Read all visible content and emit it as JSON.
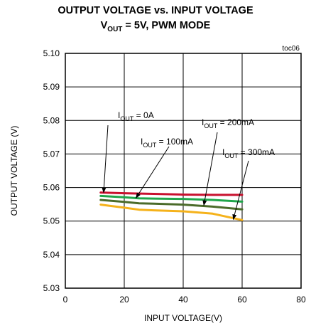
{
  "chart_data": {
    "type": "line",
    "title_line1": "OUTPUT VOLTAGE vs. INPUT VOLTAGE",
    "title_line2": {
      "v": "V",
      "sub": "OUT",
      "rest": " = 5V, PWM MODE"
    },
    "tag": "toc06",
    "xlabel": "INPUT VOLTAGE(V)",
    "ylabel": "OUTPUT VOLTAGE (V)",
    "xlim": [
      0,
      80
    ],
    "ylim": [
      5.03,
      5.1
    ],
    "xticks": [
      "0",
      "20",
      "40",
      "60",
      "80"
    ],
    "yticks": [
      "5.03",
      "5.04",
      "5.05",
      "5.06",
      "5.07",
      "5.08",
      "5.09",
      "5.10"
    ],
    "grid": true,
    "series": [
      {
        "name": "0A",
        "color": "#c8102e",
        "x": [
          12,
          20,
          30,
          40,
          50,
          60
        ],
        "y": [
          5.0585,
          5.0583,
          5.0581,
          5.0579,
          5.0578,
          5.0578
        ]
      },
      {
        "name": "100mA",
        "color": "#1fa64a",
        "x": [
          12,
          20,
          25,
          30,
          40,
          50,
          60
        ],
        "y": [
          5.0575,
          5.0571,
          5.0568,
          5.0567,
          5.0566,
          5.0563,
          5.0558
        ]
      },
      {
        "name": "200mA",
        "color": "#4b6b2a",
        "x": [
          12,
          20,
          25,
          30,
          40,
          50,
          60
        ],
        "y": [
          5.0563,
          5.0557,
          5.0553,
          5.0552,
          5.0549,
          5.0543,
          5.0535
        ]
      },
      {
        "name": "300mA",
        "color": "#f5b21b",
        "x": [
          12,
          20,
          25,
          30,
          40,
          50,
          60
        ],
        "y": [
          5.0549,
          5.054,
          5.0534,
          5.0532,
          5.0529,
          5.0522,
          5.0503
        ]
      }
    ],
    "annotations": [
      {
        "prefix": "I",
        "sub": "OUT",
        "text": " = 0A",
        "target_series": "0A"
      },
      {
        "prefix": "I",
        "sub": "OUT",
        "text": " = 100mA",
        "target_series": "100mA"
      },
      {
        "prefix": "I",
        "sub": "OUT",
        "text": " = 200mA",
        "target_series": "200mA"
      },
      {
        "prefix": "I",
        "sub": "OUT",
        "text": " = 300mA",
        "target_series": "300mA"
      }
    ]
  }
}
